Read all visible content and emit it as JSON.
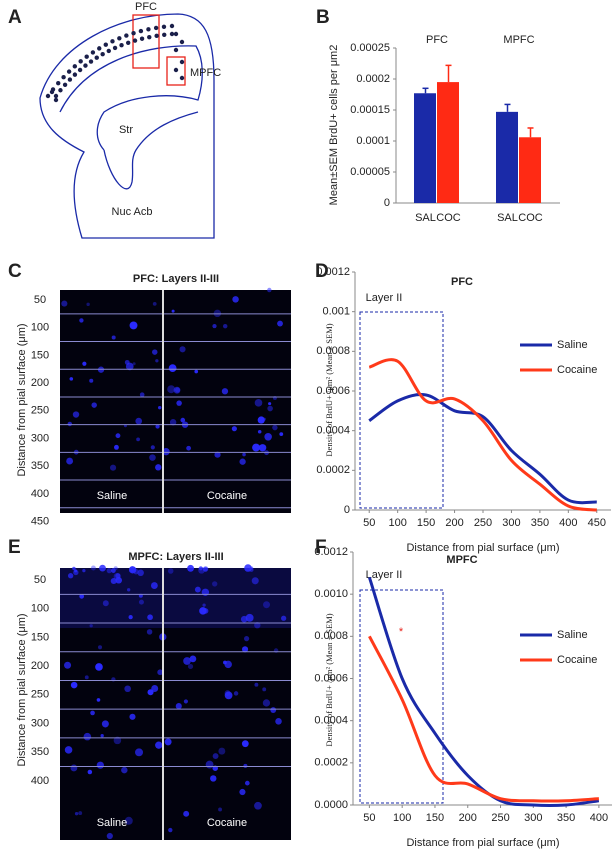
{
  "panel_labels": [
    "A",
    "B",
    "C",
    "D",
    "E",
    "F"
  ],
  "diagram": {
    "labels": [
      "PFC",
      "MPFC",
      "Str",
      "Nuc Acb"
    ]
  },
  "micrographs": [
    {
      "title": "PFC: Layers II-III",
      "ylabel": "Distance from pial surface (μm)",
      "rows": [
        50,
        100,
        150,
        200,
        250,
        300,
        350,
        400,
        450
      ],
      "conditions": [
        "Saline",
        "Cocaine"
      ]
    },
    {
      "title": "MPFC: Layers II-III",
      "ylabel": "Distance from pial surface (μm)",
      "rows": [
        50,
        100,
        150,
        200,
        250,
        300,
        350,
        400
      ],
      "conditions": [
        "Saline",
        "Cocaine"
      ]
    }
  ],
  "chart_data": [
    {
      "type": "bar",
      "ylabel": "Mean±SEM BrdU+ cells per μm2",
      "categories": [
        "PFC",
        "MPFC"
      ],
      "series": [
        {
          "name": "SAL",
          "color": "#1a2aa8",
          "values": [
            0.000177,
            0.000147
          ],
          "errors": [
            8e-06,
            1.2e-05
          ]
        },
        {
          "name": "COC",
          "color": "#ff2a14",
          "values": [
            0.000195,
            0.000106
          ],
          "errors": [
            2.7e-05,
            1.5e-05
          ]
        }
      ],
      "ylim": [
        0,
        0.00025
      ],
      "yticks": [
        0,
        5e-05,
        0.0001,
        0.00015,
        0.0002,
        0.00025
      ]
    },
    {
      "type": "line",
      "title": "PFC",
      "xlabel": "Distance from pial surface (μm)",
      "ylabel": "Density of BrdU+ /μm² (Mean ± SEM)",
      "annotations": [
        "Layer II"
      ],
      "x": [
        50,
        100,
        150,
        200,
        250,
        300,
        350,
        400,
        450
      ],
      "series": [
        {
          "name": "Saline",
          "color": "#1a2aa8",
          "values": [
            0.00045,
            0.00055,
            0.00058,
            0.0005,
            0.00047,
            0.0003,
            0.00018,
            5e-05,
            4e-05
          ]
        },
        {
          "name": "Cocaine",
          "color": "#ff3a1a",
          "values": [
            0.00072,
            0.00075,
            0.00055,
            0.00056,
            0.00045,
            0.00025,
            0.00013,
            2e-05,
            0
          ]
        }
      ],
      "xlim": [
        25,
        475
      ],
      "ylim": [
        0,
        0.0012
      ],
      "xticks": [
        50,
        100,
        150,
        200,
        250,
        300,
        350,
        400,
        450
      ],
      "yticks": [
        0,
        0.0002,
        0.0004,
        0.0006,
        0.0008,
        0.001,
        0.0012
      ],
      "legend": "right"
    },
    {
      "type": "line",
      "title": "MPFC",
      "xlabel": "Distance from pial surface (μm)",
      "ylabel": "Density of BrdU+ /μm² (Mean ± SEM)",
      "annotations": [
        "Layer II",
        "*"
      ],
      "x": [
        50,
        100,
        150,
        200,
        250,
        300,
        350,
        400
      ],
      "series": [
        {
          "name": "Saline",
          "color": "#1a2aa8",
          "values": [
            0.00108,
            0.0006,
            0.00034,
            0.00014,
            2e-05,
            0,
            0,
            2e-05
          ]
        },
        {
          "name": "Cocaine",
          "color": "#ff3a1a",
          "values": [
            0.0008,
            0.0005,
            0.00014,
            0.0001,
            3e-05,
            2e-05,
            2e-05,
            3e-05
          ]
        }
      ],
      "xlim": [
        25,
        420
      ],
      "ylim": [
        0,
        0.0012
      ],
      "xticks": [
        50,
        100,
        150,
        200,
        250,
        300,
        350,
        400
      ],
      "yticks": [
        {
          "value": 0,
          "label": "0.0000"
        },
        0.0002,
        0.0004,
        0.0006,
        0.0008,
        {
          "value": 0.001,
          "label": "0.0010"
        },
        0.0012
      ],
      "legend": "right"
    }
  ]
}
